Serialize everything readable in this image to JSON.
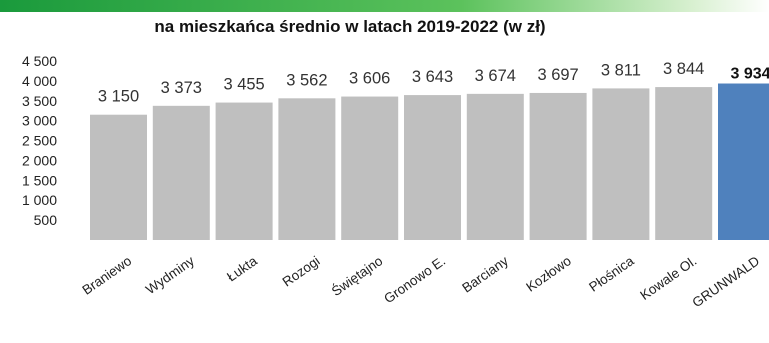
{
  "header": {
    "accent_colors": [
      "#1a9a3c",
      "#5cc25c",
      "#d8f0d0"
    ]
  },
  "chart_data": {
    "type": "bar",
    "title": "na mieszkańca średnio w latach 2019-2022 (w zł)",
    "categories": [
      "Braniewo",
      "Wydminy",
      "Łukta",
      "Rozogi",
      "Świętajno",
      "Gronowo E.",
      "Barciany",
      "Kozłowo",
      "Płośnica",
      "Kowale Ol.",
      "GRUNWALD"
    ],
    "values": [
      3150,
      3373,
      3455,
      3562,
      3606,
      3643,
      3674,
      3697,
      3811,
      3844,
      3934
    ],
    "value_labels": [
      "3 150",
      "3 373",
      "3 455",
      "3 562",
      "3 606",
      "3 643",
      "3 674",
      "3 697",
      "3 811",
      "3 844",
      "3 934"
    ],
    "highlight_index": 10,
    "y_ticks": [
      500,
      1000,
      1500,
      2000,
      2500,
      3000,
      3500,
      4000,
      4500
    ],
    "y_tick_labels": [
      "500",
      "1 000",
      "1 500",
      "2 000",
      "2 500",
      "3 000",
      "3 500",
      "4 000",
      "4 500"
    ],
    "ylim": [
      0,
      4500
    ],
    "xlabel": "",
    "ylabel": "",
    "grid": false,
    "legend": "none",
    "colors": {
      "bar": "#bfbfbf",
      "highlight": "#4f81bd",
      "text": "#333333"
    }
  }
}
